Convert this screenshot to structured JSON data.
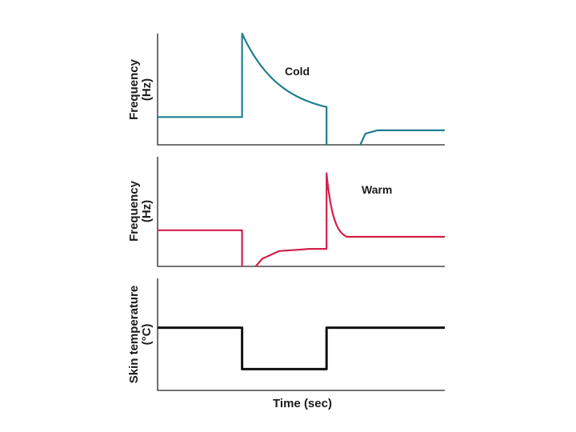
{
  "chart_data": [
    {
      "type": "line",
      "ylabel": "Frequency (Hz)",
      "ylabel_lines": [
        "Frequency",
        "(Hz)"
      ],
      "xlabel": "",
      "annotation": "Cold",
      "series": [
        {
          "name": "Cold",
          "color": "#1f7e8f",
          "segments": [
            [
              [
                0,
                0.25
              ],
              [
                5,
                0.25
              ],
              [
                5,
                1.0
              ],
              [
                10,
                0.34
              ],
              [
                10,
                0
              ]
            ],
            [
              [
                12,
                0
              ],
              [
                12.3,
                0.1
              ],
              [
                13,
                0.13
              ],
              [
                17,
                0.13
              ]
            ]
          ],
          "decay": {
            "x0": 5,
            "x1": 10,
            "y0": 1.0,
            "y_end": 0.34
          }
        }
      ],
      "xlim": [
        0,
        17
      ],
      "ylim": [
        0,
        1
      ]
    },
    {
      "type": "line",
      "ylabel": "Frequency (Hz)",
      "ylabel_lines": [
        "Frequency",
        "(Hz)"
      ],
      "xlabel": "",
      "annotation": "Warm",
      "series": [
        {
          "name": "Warm",
          "color": "#d4204a",
          "segments": [
            [
              [
                0,
                0.33
              ],
              [
                5,
                0.33
              ],
              [
                5,
                0
              ]
            ],
            [
              [
                5.8,
                0
              ],
              [
                6.2,
                0.07
              ],
              [
                7.2,
                0.14
              ],
              [
                9,
                0.16
              ],
              [
                10,
                0.16
              ],
              [
                10,
                0.85
              ],
              [
                11.2,
                0.27
              ],
              [
                17,
                0.27
              ]
            ]
          ]
        }
      ],
      "xlim": [
        0,
        17
      ],
      "ylim": [
        0,
        1
      ]
    },
    {
      "type": "line",
      "ylabel": "Skin temperature (°C)",
      "ylabel_lines": [
        "Skin temperature",
        "(°C)"
      ],
      "xlabel": "Time (sec)",
      "series": [
        {
          "name": "Skin temperature",
          "color": "#111111",
          "segments": [
            [
              [
                0,
                0.56
              ],
              [
                5,
                0.56
              ],
              [
                5,
                0.19
              ],
              [
                10,
                0.19
              ],
              [
                10,
                0.56
              ],
              [
                17,
                0.56
              ]
            ]
          ]
        }
      ],
      "xlim": [
        0,
        17
      ],
      "ylim": [
        0,
        1
      ]
    }
  ]
}
